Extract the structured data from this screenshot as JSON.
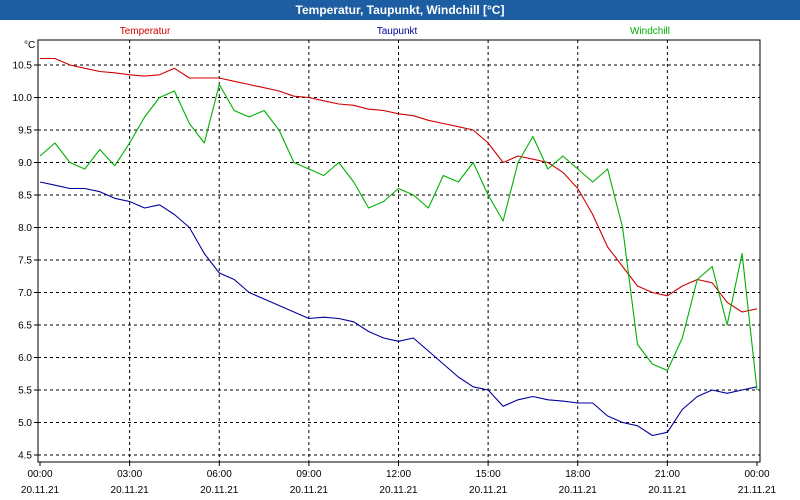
{
  "window": {
    "title": "Temperatur, Taupunkt, Windchill [°C]"
  },
  "chart_data": {
    "type": "line",
    "title": "Temperatur, Taupunkt, Windchill [°C]",
    "ylabel": "°C",
    "xlabel": "",
    "ylim": [
      4.5,
      10.75
    ],
    "xlim": [
      0,
      24
    ],
    "grid": true,
    "legend_position": "top",
    "y_ticks": [
      "10.5",
      "10.0",
      "9.5",
      "9.0",
      "8.5",
      "8.0",
      "7.5",
      "7.0",
      "6.5",
      "6.0",
      "5.5",
      "5.0",
      "4.5"
    ],
    "x_ticks": [
      {
        "time": "00:00",
        "date": "20.11.21"
      },
      {
        "time": "03:00",
        "date": "20.11.21"
      },
      {
        "time": "06:00",
        "date": "20.11.21"
      },
      {
        "time": "09:00",
        "date": "20.11.21"
      },
      {
        "time": "12:00",
        "date": "20.11.21"
      },
      {
        "time": "15:00",
        "date": "20.11.21"
      },
      {
        "time": "18:00",
        "date": "20.11.21"
      },
      {
        "time": "21:00",
        "date": "20.11.21"
      },
      {
        "time": "00:00",
        "date": "21.11.21"
      }
    ],
    "x_hours": [
      0,
      0.5,
      1,
      1.5,
      2,
      2.5,
      3,
      3.5,
      4,
      4.5,
      5,
      5.5,
      6,
      6.5,
      7,
      7.5,
      8,
      8.5,
      9,
      9.5,
      10,
      10.5,
      11,
      11.5,
      12,
      12.5,
      13,
      13.5,
      14,
      14.5,
      15,
      15.5,
      16,
      16.5,
      17,
      17.5,
      18,
      18.5,
      19,
      19.5,
      20,
      20.5,
      21,
      21.5,
      22,
      22.5,
      23,
      23.5,
      24
    ],
    "series": [
      {
        "name": "Temperatur",
        "color": "#d00000",
        "values": [
          10.6,
          10.6,
          10.5,
          10.45,
          10.4,
          10.38,
          10.35,
          10.33,
          10.35,
          10.45,
          10.3,
          10.3,
          10.3,
          10.25,
          10.2,
          10.15,
          10.1,
          10.02,
          10.0,
          9.95,
          9.9,
          9.88,
          9.82,
          9.8,
          9.75,
          9.72,
          9.65,
          9.6,
          9.55,
          9.5,
          9.3,
          9.0,
          9.1,
          9.05,
          9.0,
          8.85,
          8.6,
          8.2,
          7.7,
          7.4,
          7.1,
          7.0,
          6.95,
          7.1,
          7.2,
          7.15,
          6.85,
          6.7,
          6.75
        ]
      },
      {
        "name": "Taupunkt",
        "color": "#00009c",
        "values": [
          8.7,
          8.65,
          8.6,
          8.6,
          8.55,
          8.45,
          8.4,
          8.3,
          8.35,
          8.2,
          8.0,
          7.6,
          7.3,
          7.2,
          7.0,
          6.9,
          6.8,
          6.7,
          6.6,
          6.62,
          6.6,
          6.55,
          6.4,
          6.3,
          6.25,
          6.3,
          6.1,
          5.9,
          5.7,
          5.55,
          5.5,
          5.25,
          5.35,
          5.4,
          5.35,
          5.33,
          5.3,
          5.3,
          5.1,
          5.0,
          4.95,
          4.8,
          4.85,
          5.2,
          5.4,
          5.5,
          5.45,
          5.5,
          5.55
        ]
      },
      {
        "name": "Windchill",
        "color": "#00b000",
        "values": [
          9.1,
          9.3,
          9.0,
          8.9,
          9.2,
          8.95,
          9.3,
          9.7,
          10.0,
          10.1,
          9.6,
          9.3,
          10.2,
          9.8,
          9.7,
          9.8,
          9.5,
          9.0,
          8.9,
          8.8,
          9.0,
          8.7,
          8.3,
          8.4,
          8.6,
          8.5,
          8.3,
          8.8,
          8.7,
          9.0,
          8.5,
          8.1,
          9.0,
          9.4,
          8.9,
          9.1,
          8.9,
          8.7,
          8.9,
          8.0,
          6.2,
          5.9,
          5.8,
          6.3,
          7.2,
          7.4,
          6.5,
          7.6,
          5.5
        ]
      }
    ]
  }
}
